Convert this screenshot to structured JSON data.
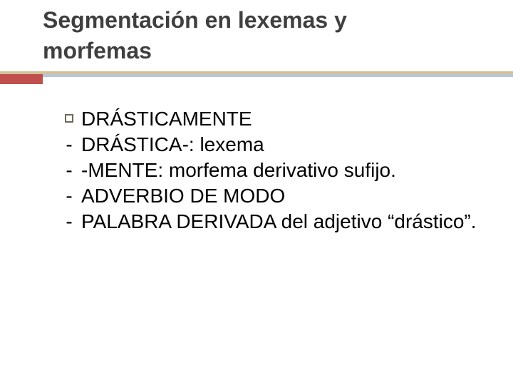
{
  "colors": {
    "background": "#ffffff",
    "title_text": "#3f3f3f",
    "rule_top": "#d2c29a",
    "rule_accent": "#c0504d",
    "rule_line": "#b9c6d6",
    "bullet_border": "#6a6a55",
    "body_text": "#000000"
  },
  "title": {
    "line1": "Segmentación en lexemas y",
    "line2": "morfemas",
    "fontsize": 32,
    "weight": "bold"
  },
  "body": {
    "fontsize": 28,
    "items": [
      {
        "marker": "square",
        "text": "DRÁSTICAMENTE"
      },
      {
        "marker": "dash",
        "text": "DRÁSTICA-: lexema"
      },
      {
        "marker": "dash",
        "text": "-MENTE: morfema derivativo sufijo."
      },
      {
        "marker": "dash",
        "text": "ADVERBIO DE MODO"
      },
      {
        "marker": "dash",
        "text": "PALABRA DERIVADA del adjetivo “drástico”."
      }
    ]
  }
}
